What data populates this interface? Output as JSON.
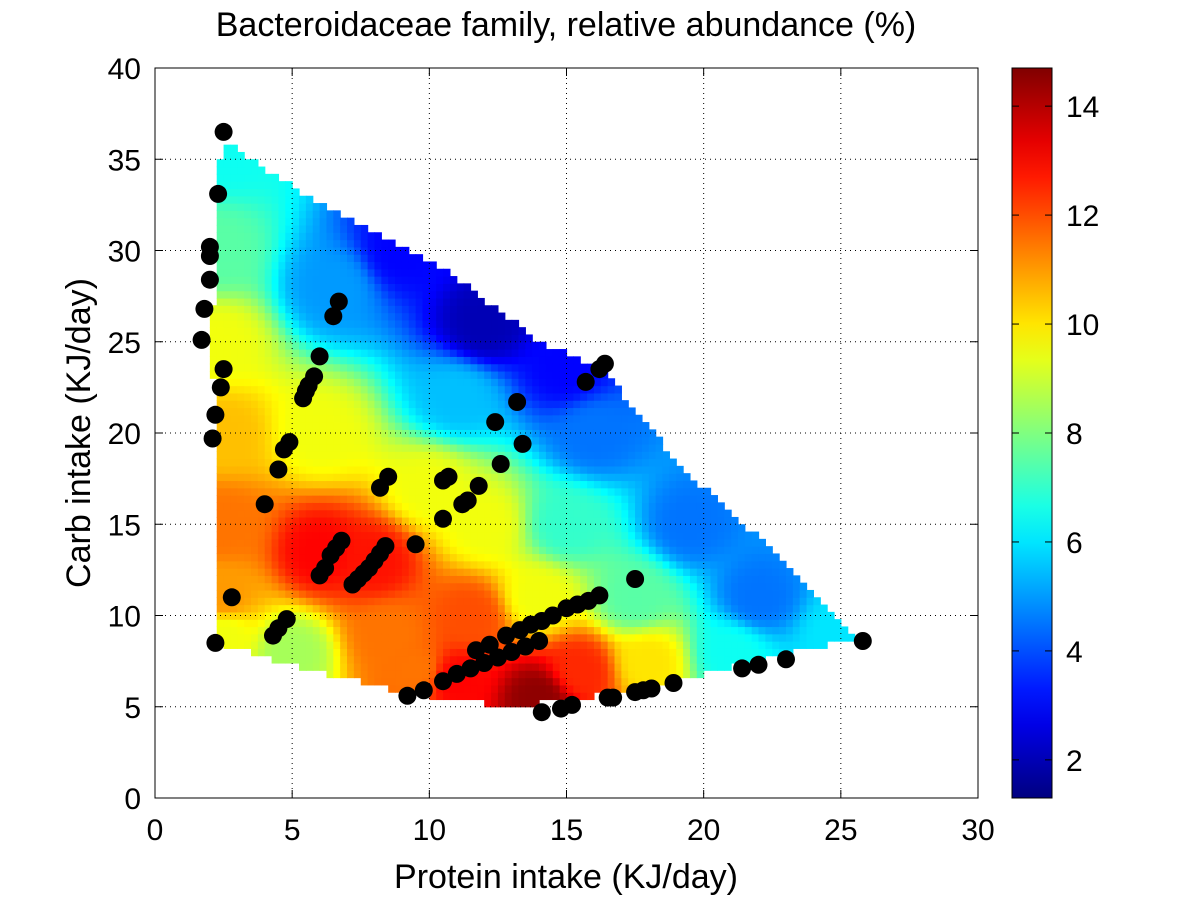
{
  "chart_data": {
    "type": "heatmap",
    "title": "Bacteroidaceae family, relative abundance (%)",
    "xlabel": "Protein intake (KJ/day)",
    "ylabel": "Carb intake (KJ/day)",
    "xlim": [
      0,
      30
    ],
    "ylim": [
      0,
      40
    ],
    "x_ticks": [
      0,
      5,
      10,
      15,
      20,
      25,
      30
    ],
    "y_ticks": [
      0,
      5,
      10,
      15,
      20,
      25,
      30,
      35,
      40
    ],
    "grid": true,
    "colormap": "jet",
    "colorbar": {
      "range": [
        1.3,
        14.7
      ],
      "ticks": [
        2,
        4,
        6,
        8,
        10,
        12,
        14
      ]
    },
    "surface_region": [
      [
        2.5,
        35.9
      ],
      [
        3.0,
        35.5
      ],
      [
        5.0,
        33.5
      ],
      [
        8.0,
        31.0
      ],
      [
        11.0,
        28.5
      ],
      [
        14.0,
        25.0
      ],
      [
        16.3,
        23.5
      ],
      [
        19.0,
        18.5
      ],
      [
        21.0,
        15.5
      ],
      [
        23.0,
        13.0
      ],
      [
        24.5,
        10.5
      ],
      [
        25.5,
        8.7
      ],
      [
        23.0,
        7.9
      ],
      [
        20.0,
        6.8
      ],
      [
        18.5,
        6.2
      ],
      [
        16.0,
        5.6
      ],
      [
        13.0,
        5.0
      ],
      [
        10.5,
        5.5
      ],
      [
        8.5,
        6.0
      ],
      [
        4.5,
        7.5
      ],
      [
        2.3,
        8.5
      ],
      [
        2.2,
        16.5
      ],
      [
        2.1,
        25.0
      ],
      [
        2.2,
        33.5
      ]
    ],
    "surface_anchors": [
      {
        "x": 2.5,
        "y": 35.5,
        "v": 6.5
      },
      {
        "x": 2.2,
        "y": 30.0,
        "v": 7.5
      },
      {
        "x": 2.3,
        "y": 25.0,
        "v": 9.5
      },
      {
        "x": 2.5,
        "y": 20.0,
        "v": 10.5
      },
      {
        "x": 2.5,
        "y": 15.0,
        "v": 11.5
      },
      {
        "x": 2.5,
        "y": 11.0,
        "v": 11.0
      },
      {
        "x": 2.5,
        "y": 9.0,
        "v": 9.5
      },
      {
        "x": 5.0,
        "y": 8.0,
        "v": 8.5
      },
      {
        "x": 6.0,
        "y": 13.5,
        "v": 13.0
      },
      {
        "x": 8.0,
        "y": 13.0,
        "v": 12.8
      },
      {
        "x": 6.0,
        "y": 20.0,
        "v": 9.5
      },
      {
        "x": 6.5,
        "y": 28.0,
        "v": 5.0
      },
      {
        "x": 9.0,
        "y": 30.0,
        "v": 3.0
      },
      {
        "x": 12.0,
        "y": 26.0,
        "v": 2.0
      },
      {
        "x": 11.0,
        "y": 22.0,
        "v": 5.5
      },
      {
        "x": 10.0,
        "y": 17.0,
        "v": 9.5
      },
      {
        "x": 12.0,
        "y": 15.0,
        "v": 9.5
      },
      {
        "x": 11.5,
        "y": 10.0,
        "v": 12.0
      },
      {
        "x": 11.0,
        "y": 6.5,
        "v": 13.0
      },
      {
        "x": 14.0,
        "y": 5.5,
        "v": 14.5
      },
      {
        "x": 15.5,
        "y": 7.0,
        "v": 12.5
      },
      {
        "x": 14.0,
        "y": 11.0,
        "v": 9.5
      },
      {
        "x": 15.0,
        "y": 15.0,
        "v": 7.0
      },
      {
        "x": 16.0,
        "y": 20.0,
        "v": 4.5
      },
      {
        "x": 15.0,
        "y": 23.5,
        "v": 3.0
      },
      {
        "x": 17.5,
        "y": 11.0,
        "v": 7.5
      },
      {
        "x": 18.0,
        "y": 7.5,
        "v": 10.0
      },
      {
        "x": 19.5,
        "y": 15.0,
        "v": 4.5
      },
      {
        "x": 22.0,
        "y": 11.0,
        "v": 4.5
      },
      {
        "x": 21.0,
        "y": 8.0,
        "v": 6.5
      },
      {
        "x": 25.0,
        "y": 9.0,
        "v": 6.0
      },
      {
        "x": 8.5,
        "y": 9.0,
        "v": 11.5
      },
      {
        "x": 9.5,
        "y": 7.0,
        "v": 11.5
      }
    ],
    "points": [
      [
        2.5,
        36.5
      ],
      [
        2.3,
        33.1
      ],
      [
        2.0,
        30.2
      ],
      [
        2.0,
        29.7
      ],
      [
        2.0,
        28.4
      ],
      [
        1.8,
        26.8
      ],
      [
        1.7,
        25.1
      ],
      [
        2.5,
        23.5
      ],
      [
        2.4,
        22.5
      ],
      [
        2.2,
        21.0
      ],
      [
        2.1,
        19.7
      ],
      [
        2.8,
        11.0
      ],
      [
        2.2,
        8.5
      ],
      [
        4.3,
        8.9
      ],
      [
        4.5,
        9.3
      ],
      [
        4.8,
        9.8
      ],
      [
        4.0,
        16.1
      ],
      [
        4.5,
        18.0
      ],
      [
        4.7,
        19.1
      ],
      [
        4.9,
        19.5
      ],
      [
        5.4,
        21.9
      ],
      [
        5.5,
        22.3
      ],
      [
        5.6,
        22.6
      ],
      [
        5.8,
        23.1
      ],
      [
        6.0,
        24.2
      ],
      [
        6.5,
        26.4
      ],
      [
        6.7,
        27.2
      ],
      [
        6.0,
        12.2
      ],
      [
        6.2,
        12.6
      ],
      [
        6.4,
        13.3
      ],
      [
        6.6,
        13.7
      ],
      [
        6.8,
        14.1
      ],
      [
        7.2,
        11.7
      ],
      [
        7.4,
        12.0
      ],
      [
        7.6,
        12.3
      ],
      [
        7.8,
        12.6
      ],
      [
        8.0,
        13.0
      ],
      [
        8.2,
        13.4
      ],
      [
        8.4,
        13.8
      ],
      [
        8.2,
        17.0
      ],
      [
        8.5,
        17.6
      ],
      [
        9.5,
        13.9
      ],
      [
        9.2,
        5.6
      ],
      [
        9.8,
        5.9
      ],
      [
        10.5,
        6.4
      ],
      [
        11.0,
        6.8
      ],
      [
        11.5,
        7.1
      ],
      [
        12.0,
        7.4
      ],
      [
        12.5,
        7.7
      ],
      [
        13.0,
        8.0
      ],
      [
        13.5,
        8.3
      ],
      [
        14.0,
        8.6
      ],
      [
        11.7,
        8.1
      ],
      [
        12.2,
        8.4
      ],
      [
        12.8,
        8.9
      ],
      [
        13.3,
        9.2
      ],
      [
        13.7,
        9.5
      ],
      [
        14.1,
        9.7
      ],
      [
        14.5,
        10.0
      ],
      [
        15.0,
        10.4
      ],
      [
        15.4,
        10.6
      ],
      [
        15.8,
        10.8
      ],
      [
        16.2,
        11.1
      ],
      [
        10.5,
        15.3
      ],
      [
        10.5,
        17.4
      ],
      [
        10.7,
        17.6
      ],
      [
        11.2,
        16.1
      ],
      [
        11.4,
        16.3
      ],
      [
        11.8,
        17.1
      ],
      [
        12.4,
        20.6
      ],
      [
        12.6,
        18.3
      ],
      [
        13.2,
        21.7
      ],
      [
        13.4,
        19.4
      ],
      [
        14.1,
        4.7
      ],
      [
        14.8,
        4.9
      ],
      [
        15.2,
        5.1
      ],
      [
        16.5,
        5.5
      ],
      [
        16.7,
        5.5
      ],
      [
        17.5,
        5.8
      ],
      [
        17.8,
        5.9
      ],
      [
        18.1,
        6.0
      ],
      [
        18.9,
        6.3
      ],
      [
        17.5,
        12.0
      ],
      [
        15.7,
        22.8
      ],
      [
        16.2,
        23.5
      ],
      [
        16.4,
        23.8
      ],
      [
        21.4,
        7.1
      ],
      [
        22.0,
        7.3
      ],
      [
        23.0,
        7.6
      ],
      [
        25.8,
        8.6
      ]
    ]
  }
}
